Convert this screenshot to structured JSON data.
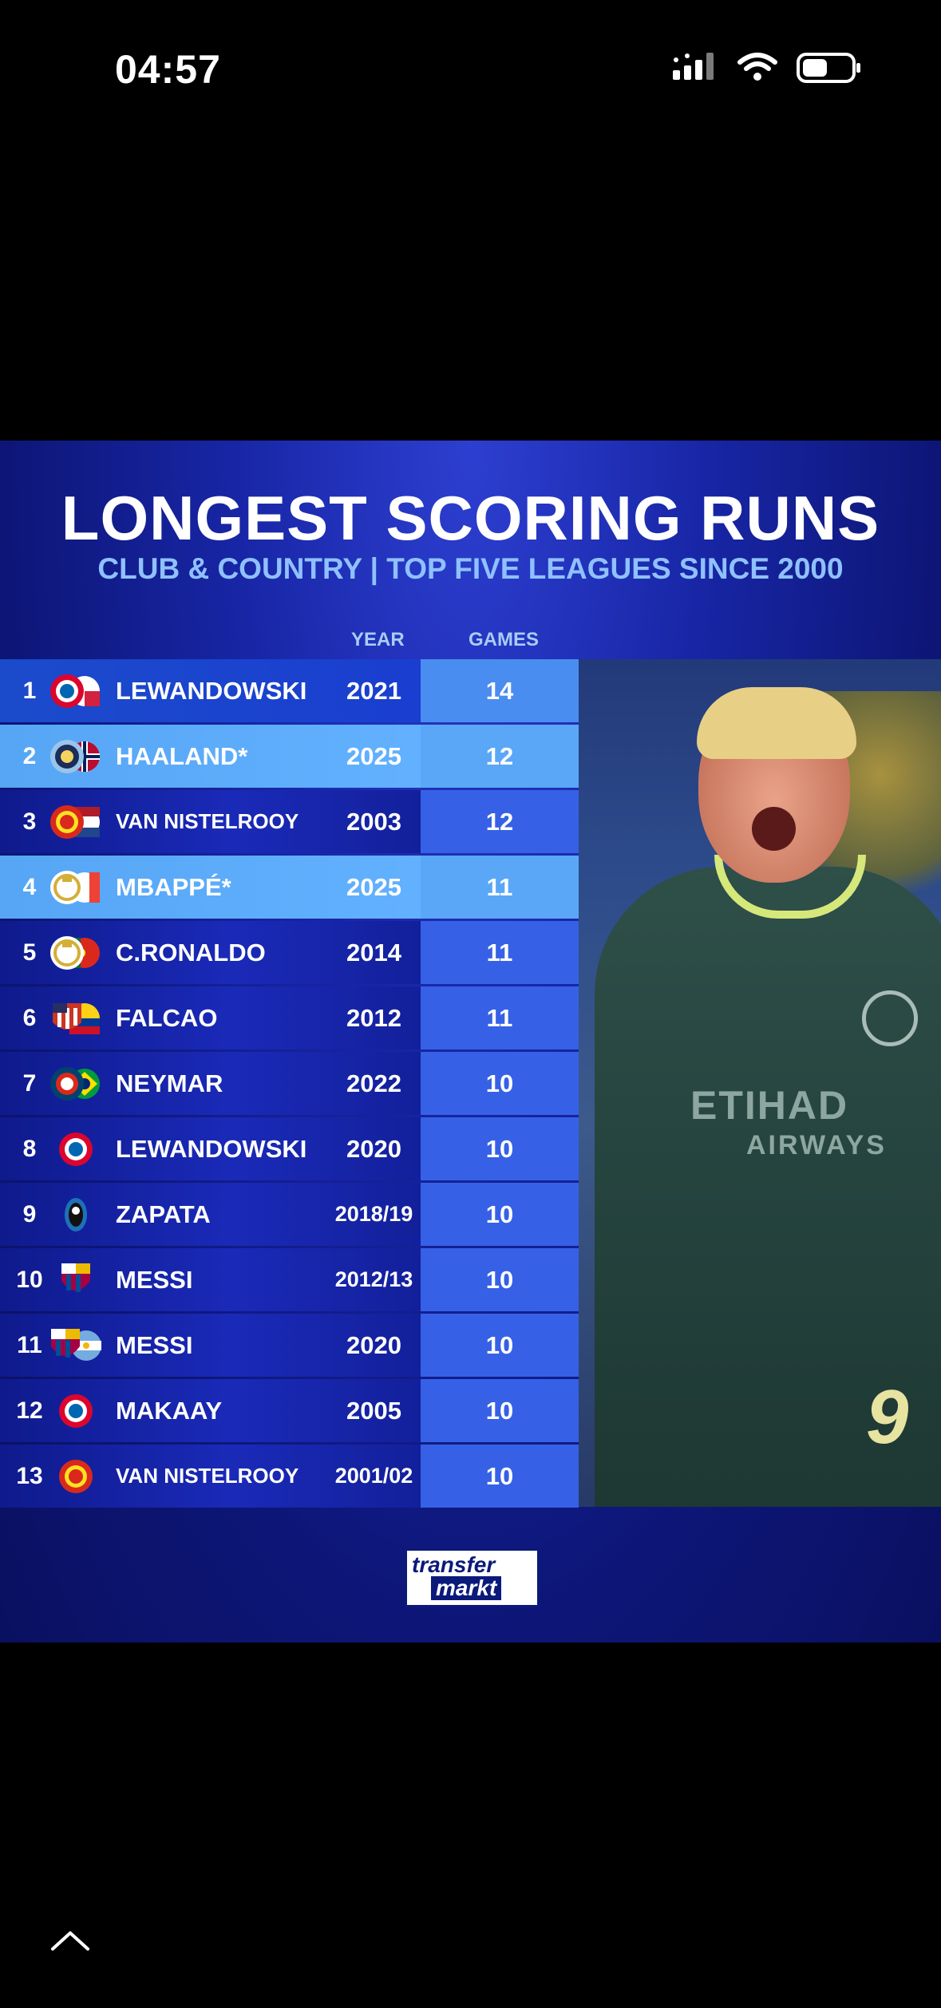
{
  "status_bar": {
    "time": "04:57"
  },
  "infographic": {
    "title": "LONGEST SCORING RUNS",
    "subtitle": "CLUB & COUNTRY | TOP FIVE LEAGUES SINCE 2000",
    "columns": {
      "year": "YEAR",
      "games": "GAMES"
    },
    "rows": [
      {
        "rank": "1",
        "name": "LEWANDOWSKI",
        "year": "2021",
        "games": "14",
        "logo": "bayern-poland-logo"
      },
      {
        "rank": "2",
        "name": "HAALAND*",
        "year": "2025",
        "games": "12",
        "logo": "city-norway-logo"
      },
      {
        "rank": "3",
        "name": "VAN NISTELROOY",
        "year": "2003",
        "games": "12",
        "logo": "united-netherlands-logo"
      },
      {
        "rank": "4",
        "name": "MBAPPÉ*",
        "year": "2025",
        "games": "11",
        "logo": "real-france-logo"
      },
      {
        "rank": "5",
        "name": "C.RONALDO",
        "year": "2014",
        "games": "11",
        "logo": "real-portugal-logo"
      },
      {
        "rank": "6",
        "name": "FALCAO",
        "year": "2012",
        "games": "11",
        "logo": "atletico-colombia-logo"
      },
      {
        "rank": "7",
        "name": "NEYMAR",
        "year": "2022",
        "games": "10",
        "logo": "psg-brazil-logo"
      },
      {
        "rank": "8",
        "name": "LEWANDOWSKI",
        "year": "2020",
        "games": "10",
        "logo": "bayern-logo"
      },
      {
        "rank": "9",
        "name": "ZAPATA",
        "year": "2018/19",
        "games": "10",
        "logo": "atalanta-logo"
      },
      {
        "rank": "10",
        "name": "MESSI",
        "year": "2012/13",
        "games": "10",
        "logo": "barcelona-logo"
      },
      {
        "rank": "11",
        "name": "MESSI",
        "year": "2020",
        "games": "10",
        "logo": "barcelona-argentina-logo"
      },
      {
        "rank": "12",
        "name": "MAKAAY",
        "year": "2005",
        "games": "10",
        "logo": "bayern-logo"
      },
      {
        "rank": "13",
        "name": "VAN NISTELROOY",
        "year": "2001/02",
        "games": "10",
        "logo": "united-logo"
      }
    ],
    "photo_sponsor": "ETIHAD",
    "photo_sponsor_2": "AIRWAYS",
    "photo_number": "9",
    "brand_line1": "transfer",
    "brand_line2": "markt"
  },
  "colors": {
    "accent": "#3661e6",
    "highlight": "#5aa7f7",
    "background": "#0d1677"
  }
}
